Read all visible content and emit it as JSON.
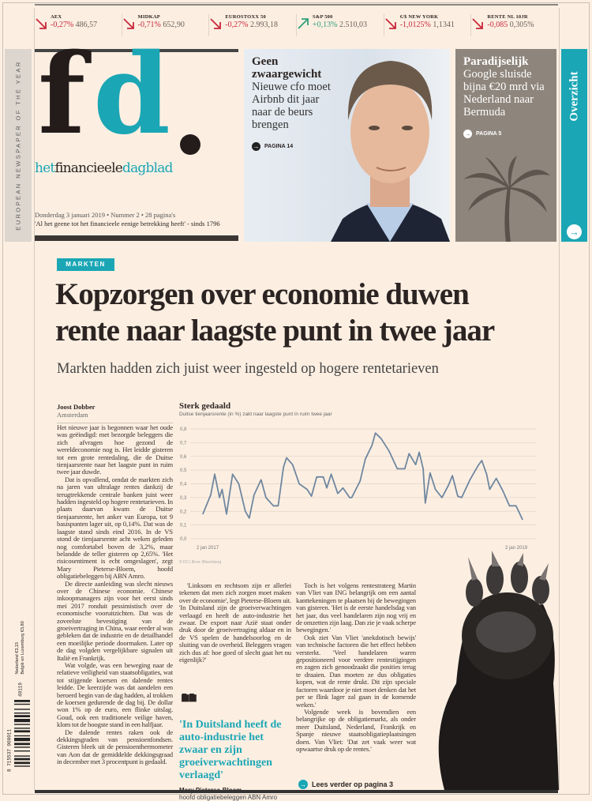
{
  "colors": {
    "accent": "#1ba6b5",
    "down": "#c8283a",
    "up": "#2f9e7a",
    "paper": "#fcefe2"
  },
  "ticker": [
    {
      "name": "AEX",
      "change": "-0,27%",
      "value": "486,57",
      "direction": "down"
    },
    {
      "name": "MIDKAP",
      "change": "-0,71%",
      "value": "652,90",
      "direction": "down"
    },
    {
      "name": "EUROSTOXX 50",
      "change": "-0,27%",
      "value": "2.993,18",
      "direction": "down"
    },
    {
      "name": "S&P 500",
      "change": "+0,13%",
      "value": "2.510,03",
      "direction": "up"
    },
    {
      "name": "€/$ NEW YORK",
      "change": "-1,0125%",
      "value": "1,1341",
      "direction": "down"
    },
    {
      "name": "RENTE NL 10JR",
      "change": "-0,085",
      "value": "0,305%",
      "direction": "down"
    }
  ],
  "side_award": "EUROPEAN NEWSPAPER OF THE YEAR",
  "masthead": {
    "logo": "fd.",
    "subtitle_1": "het",
    "subtitle_2": "financieele",
    "subtitle_3": "dagblad",
    "dateline": "Donderdag 3 januari 2019 • Nummer 2 • 28 pagina's",
    "motto": "'Al het geene tot het financieele eenige betrekking heeft' - sinds 1796"
  },
  "teaser_photo": {
    "heading_1": "Geen",
    "heading_2": "zwaargewicht",
    "text": "Nieuwe cfo moet Airbnb dit jaar naar de beurs brengen",
    "page": "PAGINA 14"
  },
  "teaser_box": {
    "heading": "Paradijselijk",
    "text": "Google sluisde bijna €20 mrd via Nederland naar Bermuda",
    "page": "PAGINA 5"
  },
  "overzicht": "Overzicht",
  "article": {
    "section": "MARKTEN",
    "headline_1": "Kopzorgen over economie duwen",
    "headline_2": "rente naar laagste punt in twee jaar",
    "subhead": "Markten hadden zich juist weer ingesteld op hogere rentetarieven",
    "author": "Joost Dobber",
    "location": "Amsterdam",
    "col1": [
      "Het nieuwe jaar is begonnen waar het oude was geëindigd: met bezorgde beleggers die zich afvragen hoe gezond de wereldeconomie nog is. Het leidde gisteren tot een grote rentedaling, die de Duitse tienjaarsrente naar het laagste punt in ruim twee jaar duwde.",
      "Dat is opvallend, omdat de markten zich na jaren van ultralage rentes dankzij de terugtrekkende centrale banken juist weer hadden ingesteld op hogere rentetarieven. In plaats daarvan kwam de Duitse tienjaarsrente, het anker van Europa, tot 9 basispunten lager uit, op 0,14%. Dat was de laagste stand sinds eind 2016. In de VS stond de tienjaarsrente acht weken geleden nog comfortabel boven de 3,2%, maar belandde de teller gisteren op 2,65%. 'Het risicosentiment is echt omgeslagen', zegt Mary Pieterse-Bloem, hoofd obligatiebeleggen bij ABN Amro.",
      "De directe aanleiding was slecht nieuws over de Chinese economie. Chinese inkoopmanagers zijn voor het eerst sinds mei 2017 ronduit pessimistisch over de economische vooruitzichten. Dat was de zoveelste bevestiging van de groeivertraging in China, waar eerder al was gebleken dat de industrie en de detailhandel een moeilijke periode doormaken. Later op de dag volgden vergelijkbare signalen uit Italië en Frankrijk.",
      "Wat volgde, was een beweging naar de relatieve veiligheid van staatsobligaties, wat tot stijgende koersen en dalende rentes leidde. De keerzijde was dat aandelen een beroerd begin van de dag hadden, al trokken de koersen gedurende de dag bij. De dollar won 1% op de euro, een flinke uitslag. Goud, ook een traditionele veilige haven, klom tot de hoogste stand in een halfjaar.",
      "De dalende rentes raken ook de dekkingsgraden van pensioenfondsen. Gisteren bleek uit de pensioenthermometer van Aon dat de gemiddelde dekkingsgraad in december met 3 procentpunt is gedaald."
    ],
    "col2": [
      "'Linksom en rechtsom zijn er allerlei tekenen dat men zich zorgen moet maken over de economie', legt Pieterse-Bloem uit. 'In Duitsland zijn de groeiverwachtingen verlaagd en heeft de auto-industrie het zwaar. De export naar Azië staat onder druk door de groeivertraging aldaar en in de VS spelen de handelsoorlog en de sluiting van de overheid. Beleggers vragen zich dus af: hoe goed of slecht gaat het nu eigenlijk?'"
    ],
    "col3": [
      "Toch is het volgens rentestrateeg Martin van Vliet van ING belangrijk om een aantal kanttekeningen te plaatsen bij de bewegingen van gisteren. 'Het is de eerste handelsdag van het jaar, dus veel handelaren zijn nog vrij en de omzetten zijn laag. Dan zie je vaak scherpe bewegingen.'",
      "Ook ziet Van Vliet 'anekdotisch bewijs' van technische factoren die het effect hebben versterkt. 'Veel handelaren waren gepositioneerd voor verdere rentestijgingen en zagen zich genoodzaakt die posities terug te draaien. Dan moeten ze dus obligaties kopen, wat de rente drukt. Dit zijn speciale factoren waardoor je niet moet denken dat het per se flink lager zal gaan in de komende weken.'",
      "Volgende week is bovendien een belangrijke op de obligatiemarkt, als onder meer Duitsland, Nederland, Frankrijk en Spanje nieuwe staatsobligatieplaatsingen doen. Van Vliet: 'Dat zet vaak weer wat opwaartse druk op de rentes.'"
    ],
    "quote": {
      "text": "'In Duitsland heeft de auto-industrie het zwaar en zijn groeiverwachtingen verlaagd'",
      "name": "Mary Pieterse-Bloem",
      "role": "hoofd obligatiebeleggen ABN Amro"
    },
    "continue": "Lees verder op pagina 3"
  },
  "prices": {
    "nl": "Nederland €3,15",
    "be": "België en Luxemburg €3,80",
    "issue": "40119",
    "barcode": "8 715537 000011"
  },
  "chart_data": {
    "type": "line",
    "title": "Sterk gedaald",
    "subtitle": "Duitse tienjaarsrente (in %) zakt naar laagste punt in ruim twee jaar",
    "source": "© FD | Bron: Bloomberg",
    "ylim": [
      0,
      0.8
    ],
    "yticks": [
      "0,0",
      "0,1",
      "0,2",
      "0,3",
      "0,4",
      "0,5",
      "0,6",
      "0,7",
      "0,8"
    ],
    "xticks": [
      {
        "date": "2017-01-02",
        "label": "2 jan 2017"
      },
      {
        "date": "2019-01-02",
        "label": "2 jan 2019"
      }
    ],
    "grid": true,
    "x": [
      "2017-01-02",
      "2017-01-20",
      "2017-01-29",
      "2017-02-09",
      "2017-02-15",
      "2017-02-25",
      "2017-03-11",
      "2017-03-25",
      "2017-04-09",
      "2017-04-18",
      "2017-04-29",
      "2017-05-15",
      "2017-05-26",
      "2017-06-12",
      "2017-06-23",
      "2017-07-05",
      "2017-07-12",
      "2017-07-26",
      "2017-08-10",
      "2017-08-28",
      "2017-09-07",
      "2017-09-19",
      "2017-10-04",
      "2017-10-12",
      "2017-10-22",
      "2017-11-06",
      "2017-11-18",
      "2017-12-03",
      "2017-12-08",
      "2017-12-27",
      "2018-01-08",
      "2018-01-23",
      "2018-01-31",
      "2018-02-13",
      "2018-03-03",
      "2018-03-22",
      "2018-04-08",
      "2018-04-18",
      "2018-05-03",
      "2018-05-11",
      "2018-05-20",
      "2018-05-25",
      "2018-06-05",
      "2018-06-17",
      "2018-07-02",
      "2018-07-17",
      "2018-07-26",
      "2018-08-07",
      "2018-08-16",
      "2018-09-04",
      "2018-09-22",
      "2018-10-01",
      "2018-10-12",
      "2018-10-19",
      "2018-11-03",
      "2018-11-18",
      "2018-12-03",
      "2018-12-18",
      "2019-01-02"
    ],
    "values": [
      0.18,
      0.32,
      0.47,
      0.3,
      0.36,
      0.18,
      0.47,
      0.4,
      0.2,
      0.15,
      0.32,
      0.43,
      0.3,
      0.24,
      0.24,
      0.52,
      0.59,
      0.54,
      0.4,
      0.36,
      0.31,
      0.45,
      0.45,
      0.37,
      0.47,
      0.33,
      0.37,
      0.3,
      0.3,
      0.42,
      0.58,
      0.68,
      0.77,
      0.73,
      0.64,
      0.51,
      0.51,
      0.62,
      0.54,
      0.63,
      0.51,
      0.26,
      0.48,
      0.36,
      0.3,
      0.39,
      0.46,
      0.31,
      0.3,
      0.43,
      0.53,
      0.57,
      0.47,
      0.36,
      0.44,
      0.35,
      0.24,
      0.24,
      0.14
    ],
    "line_color": "#6f87a0"
  }
}
